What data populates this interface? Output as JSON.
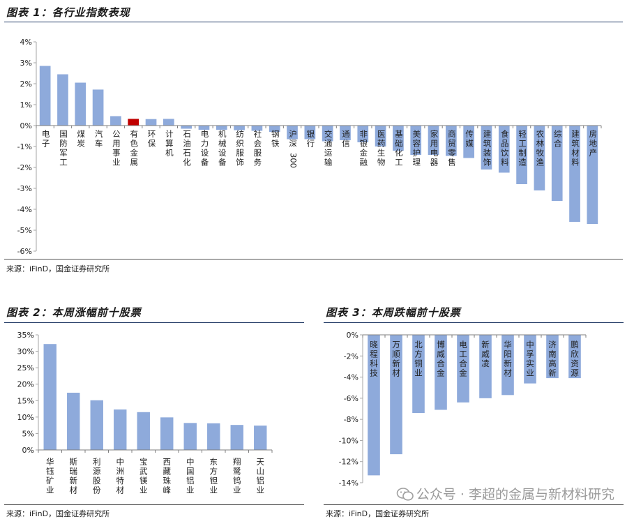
{
  "figure1": {
    "title": "图表 1：各行业指数表现",
    "source": "来源：iFinD，国金证券研究所",
    "chart_data": {
      "type": "bar",
      "title": "各行业指数表现",
      "ylim": [
        -6,
        4
      ],
      "y_ticks": [
        "4%",
        "3%",
        "2%",
        "1%",
        "0%",
        "-1%",
        "-2%",
        "-3%",
        "-4%",
        "-5%",
        "-6%"
      ],
      "categories": [
        "电子",
        "国防军工",
        "煤炭",
        "汽车",
        "公用事业",
        "有色金属",
        "环保",
        "计算机",
        "石油石化",
        "电力设备",
        "机械设备",
        "纺织服饰",
        "社会服务",
        "钢铁",
        "沪深300",
        "银行",
        "交通运输",
        "通信",
        "非银金融",
        "医药生物",
        "基础化工",
        "美容护理",
        "家用电器",
        "商贸零售",
        "传媒",
        "建筑装饰",
        "食品饮料",
        "轻工制造",
        "农林牧渔",
        "综合",
        "建筑材料",
        "房地产"
      ],
      "values": [
        2.85,
        2.45,
        2.05,
        1.72,
        0.45,
        0.32,
        0.31,
        0.32,
        -0.15,
        -0.2,
        -0.2,
        -0.22,
        -0.25,
        -0.3,
        -0.65,
        -0.65,
        -0.75,
        -0.7,
        -0.8,
        -1.0,
        -1.2,
        -1.4,
        -1.4,
        -1.45,
        -1.55,
        -2.1,
        -2.25,
        -2.8,
        -3.1,
        -3.6,
        -4.6,
        -4.7
      ],
      "highlight_index": 5,
      "bar_color": "#8eaadb",
      "highlight_color": "#c00000"
    }
  },
  "figure2": {
    "title": "图表 2：本周涨幅前十股票",
    "source": "来源：iFinD，国金证券研究所",
    "chart_data": {
      "type": "bar",
      "title": "本周涨幅前十股票",
      "ylim": [
        0,
        35
      ],
      "y_ticks": [
        "35%",
        "30%",
        "25%",
        "20%",
        "15%",
        "10%",
        "5%",
        "0%"
      ],
      "categories": [
        "华钰矿业",
        "斯瑞新材",
        "利源股份",
        "中洲特材",
        "宝武镁业",
        "西藏珠峰",
        "中国铝业",
        "东方钽业",
        "翔鹭钨业",
        "天山铝业"
      ],
      "values": [
        32.2,
        17.4,
        15.1,
        12.3,
        11.5,
        9.9,
        8.2,
        8.1,
        7.6,
        7.4
      ],
      "bar_color": "#8eaadb"
    }
  },
  "figure3": {
    "title": "图表 3：本周跌幅前十股票",
    "source": "来源：iFinD，国金证券研究所",
    "chart_data": {
      "type": "bar",
      "title": "本周跌幅前十股票",
      "ylim": [
        -14,
        0
      ],
      "y_ticks": [
        "0%",
        "-2%",
        "-4%",
        "-6%",
        "-8%",
        "-10%",
        "-12%",
        "-14%"
      ],
      "categories": [
        "晓程科技",
        "万顺新材",
        "北方铜业",
        "博威合金",
        "电工合金",
        "新威凌",
        "华阳新材",
        "中孚实业",
        "济南高新",
        "鹏欣资源"
      ],
      "values": [
        -13.3,
        -11.3,
        -7.4,
        -7.1,
        -6.4,
        -6.0,
        -5.7,
        -4.6,
        -4.1,
        -4.1
      ],
      "bar_color": "#8eaadb"
    }
  },
  "watermark": {
    "text": "公众号 · 李超的金属与新材料研究"
  }
}
